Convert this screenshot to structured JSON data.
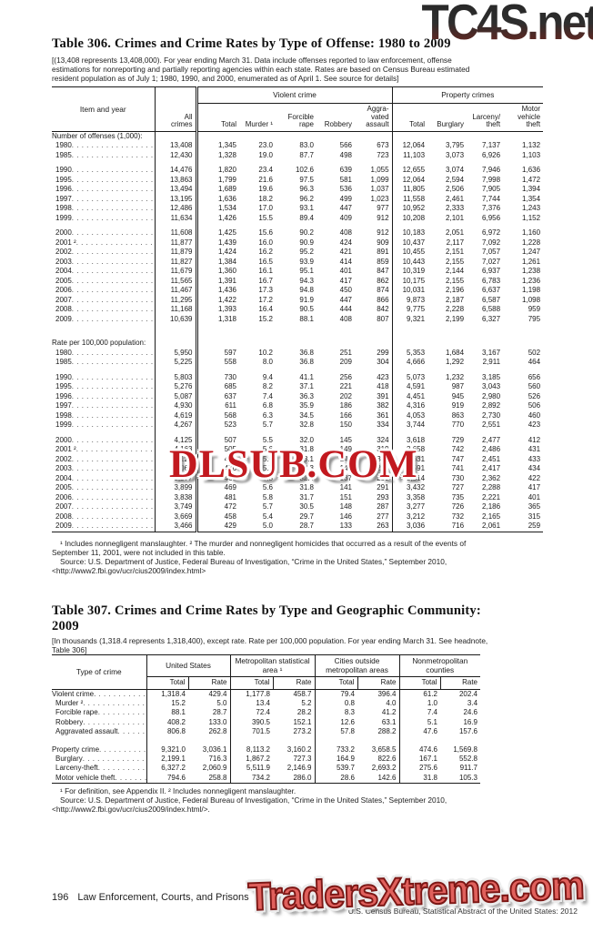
{
  "page": {
    "watermark_top": "TC4S.net",
    "watermark_mid": "DLSUB.COM",
    "watermark_bottom": "TradersXtreme.com",
    "footer": {
      "page_number": "196",
      "section_title": "Law Enforcement, Courts, and Prisons",
      "credit": "U.S. Census Bureau, Statistical Abstract of the United States: 2012"
    }
  },
  "table306": {
    "title": "Table 306. Crimes and Crime Rates by Type of Offense: 1980 to 2009",
    "headnote_lines": [
      "[(13,408 represents 13,408,000). For year ending March 31. Data include offenses reported to law enforcement, offense",
      "estimations for nonreporting and partially reporting agencies within each state. Rates are based on Census Bureau estimated",
      "resident population as of July 1; 1980, 1990, and 2000, enumerated as of April 1. See source for details]"
    ],
    "stub_head": "Item and year",
    "group_heads": {
      "violent": "Violent crime",
      "property": "Property crimes"
    },
    "col_heads": [
      "All\ncrimes",
      "Total",
      "Murder ¹",
      "Forcible\nrape",
      "Robbery",
      "Aggra-\nvated\nassault",
      "Total",
      "Burglary",
      "Larceny/\ntheft",
      "Motor\nvehicle\ntheft"
    ],
    "sections": [
      {
        "label": "Number of offenses (1,000):",
        "rows": [
          {
            "label": "1980",
            "values": [
              "13,408",
              "1,345",
              "23.0",
              "83.0",
              "566",
              "673",
              "12,064",
              "3,795",
              "7,137",
              "1,132"
            ]
          },
          {
            "label": "1985",
            "values": [
              "12,430",
              "1,328",
              "19.0",
              "87.7",
              "498",
              "723",
              "11,103",
              "3,073",
              "6,926",
              "1,103"
            ]
          },
          {
            "spacer": "sm"
          },
          {
            "label": "1990",
            "values": [
              "14,476",
              "1,820",
              "23.4",
              "102.6",
              "639",
              "1,055",
              "12,655",
              "3,074",
              "7,946",
              "1,636"
            ]
          },
          {
            "label": "1995",
            "values": [
              "13,863",
              "1,799",
              "21.6",
              "97.5",
              "581",
              "1,099",
              "12,064",
              "2,594",
              "7,998",
              "1,472"
            ]
          },
          {
            "label": "1996",
            "values": [
              "13,494",
              "1,689",
              "19.6",
              "96.3",
              "536",
              "1,037",
              "11,805",
              "2,506",
              "7,905",
              "1,394"
            ]
          },
          {
            "label": "1997",
            "values": [
              "13,195",
              "1,636",
              "18.2",
              "96.2",
              "499",
              "1,023",
              "11,558",
              "2,461",
              "7,744",
              "1,354"
            ]
          },
          {
            "label": "1998",
            "values": [
              "12,486",
              "1,534",
              "17.0",
              "93.1",
              "447",
              "977",
              "10,952",
              "2,333",
              "7,376",
              "1,243"
            ]
          },
          {
            "label": "1999",
            "values": [
              "11,634",
              "1,426",
              "15.5",
              "89.4",
              "409",
              "912",
              "10,208",
              "2,101",
              "6,956",
              "1,152"
            ]
          },
          {
            "spacer": "sm"
          },
          {
            "label": "2000",
            "values": [
              "11,608",
              "1,425",
              "15.6",
              "90.2",
              "408",
              "912",
              "10,183",
              "2,051",
              "6,972",
              "1,160"
            ]
          },
          {
            "label": "2001 ²",
            "values": [
              "11,877",
              "1,439",
              "16.0",
              "90.9",
              "424",
              "909",
              "10,437",
              "2,117",
              "7,092",
              "1,228"
            ]
          },
          {
            "label": "2002",
            "values": [
              "11,879",
              "1,424",
              "16.2",
              "95.2",
              "421",
              "891",
              "10,455",
              "2,151",
              "7,057",
              "1,247"
            ]
          },
          {
            "label": "2003",
            "values": [
              "11,827",
              "1,384",
              "16.5",
              "93.9",
              "414",
              "859",
              "10,443",
              "2,155",
              "7,027",
              "1,261"
            ]
          },
          {
            "label": "2004",
            "values": [
              "11,679",
              "1,360",
              "16.1",
              "95.1",
              "401",
              "847",
              "10,319",
              "2,144",
              "6,937",
              "1,238"
            ]
          },
          {
            "label": "2005",
            "values": [
              "11,565",
              "1,391",
              "16.7",
              "94.3",
              "417",
              "862",
              "10,175",
              "2,155",
              "6,783",
              "1,236"
            ]
          },
          {
            "label": "2006",
            "values": [
              "11,467",
              "1,436",
              "17.3",
              "94.8",
              "450",
              "874",
              "10,031",
              "2,196",
              "6,637",
              "1,198"
            ]
          },
          {
            "label": "2007",
            "values": [
              "11,295",
              "1,422",
              "17.2",
              "91.9",
              "447",
              "866",
              "9,873",
              "2,187",
              "6,587",
              "1,098"
            ]
          },
          {
            "label": "2008",
            "values": [
              "11,168",
              "1,393",
              "16.4",
              "90.5",
              "444",
              "842",
              "9,775",
              "2,228",
              "6,588",
              "959"
            ]
          },
          {
            "label": "2009",
            "values": [
              "10,639",
              "1,318",
              "15.2",
              "88.1",
              "408",
              "807",
              "9,321",
              "2,199",
              "6,327",
              "795"
            ]
          },
          {
            "spacer": "lg"
          }
        ]
      },
      {
        "label": "Rate per 100,000 population:",
        "rows": [
          {
            "label": "1980",
            "values": [
              "5,950",
              "597",
              "10.2",
              "36.8",
              "251",
              "299",
              "5,353",
              "1,684",
              "3,167",
              "502"
            ]
          },
          {
            "label": "1985",
            "values": [
              "5,225",
              "558",
              "8.0",
              "36.8",
              "209",
              "304",
              "4,666",
              "1,292",
              "2,911",
              "464"
            ]
          },
          {
            "spacer": "sm"
          },
          {
            "label": "1990",
            "values": [
              "5,803",
              "730",
              "9.4",
              "41.1",
              "256",
              "423",
              "5,073",
              "1,232",
              "3,185",
              "656"
            ]
          },
          {
            "label": "1995",
            "values": [
              "5,276",
              "685",
              "8.2",
              "37.1",
              "221",
              "418",
              "4,591",
              "987",
              "3,043",
              "560"
            ]
          },
          {
            "label": "1996",
            "values": [
              "5,087",
              "637",
              "7.4",
              "36.3",
              "202",
              "391",
              "4,451",
              "945",
              "2,980",
              "526"
            ]
          },
          {
            "label": "1997",
            "values": [
              "4,930",
              "611",
              "6.8",
              "35.9",
              "186",
              "382",
              "4,316",
              "919",
              "2,892",
              "506"
            ]
          },
          {
            "label": "1998",
            "values": [
              "4,619",
              "568",
              "6.3",
              "34.5",
              "166",
              "361",
              "4,053",
              "863",
              "2,730",
              "460"
            ]
          },
          {
            "label": "1999",
            "values": [
              "4,267",
              "523",
              "5.7",
              "32.8",
              "150",
              "334",
              "3,744",
              "770",
              "2,551",
              "423"
            ]
          },
          {
            "spacer": "sm"
          },
          {
            "label": "2000",
            "values": [
              "4,125",
              "507",
              "5.5",
              "32.0",
              "145",
              "324",
              "3,618",
              "729",
              "2,477",
              "412"
            ]
          },
          {
            "label": "2001 ²",
            "values": [
              "4,163",
              "505",
              "5.6",
              "31.8",
              "149",
              "319",
              "3,658",
              "742",
              "2,486",
              "431"
            ]
          },
          {
            "label": "2002",
            "values": [
              "4,125",
              "494",
              "5.6",
              "33.1",
              "146",
              "309",
              "3,631",
              "747",
              "2,451",
              "433"
            ]
          },
          {
            "label": "2003",
            "values": [
              "4,067",
              "476",
              "5.7",
              "32.3",
              "142",
              "295",
              "3,591",
              "741",
              "2,417",
              "434"
            ]
          },
          {
            "label": "2004",
            "values": [
              "3,977",
              "463",
              "5.5",
              "32.4",
              "137",
              "289",
              "3,514",
              "730",
              "2,362",
              "422"
            ]
          },
          {
            "label": "2005",
            "values": [
              "3,899",
              "469",
              "5.6",
              "31.8",
              "141",
              "291",
              "3,432",
              "727",
              "2,288",
              "417"
            ]
          },
          {
            "label": "2006",
            "values": [
              "3,838",
              "481",
              "5.8",
              "31.7",
              "151",
              "293",
              "3,358",
              "735",
              "2,221",
              "401"
            ]
          },
          {
            "label": "2007",
            "values": [
              "3,749",
              "472",
              "5.7",
              "30.5",
              "148",
              "287",
              "3,277",
              "726",
              "2,186",
              "365"
            ]
          },
          {
            "label": "2008",
            "values": [
              "3,669",
              "458",
              "5.4",
              "29.7",
              "146",
              "277",
              "3,212",
              "732",
              "2,165",
              "315"
            ]
          },
          {
            "label": "2009",
            "values": [
              "3,466",
              "429",
              "5.0",
              "28.7",
              "133",
              "263",
              "3,036",
              "716",
              "2,061",
              "259"
            ]
          }
        ]
      }
    ],
    "footnote_lines": [
      "¹ Includes nonnegligent manslaughter. ² The murder and nonnegligent homicides that occurred as a result of the events of",
      "September 11, 2001, were not included in this table."
    ],
    "source_lines": [
      "Source: U.S. Department of Justice, Federal Bureau of Investigation, “Crime in the United States,” September 2010,",
      "<http://www2.fbi.gov/ucr/cius2009/index.html>"
    ]
  },
  "table307": {
    "title_lines": [
      "Table 307. Crimes and Crime Rates by Type and Geographic Community:",
      "2009"
    ],
    "headnote_lines": [
      "[In thousands (1,318.4 represents 1,318,400), except rate. Rate per 100,000 population. For year ending March 31. See headnote,",
      "Table 306]"
    ],
    "stub_head": "Type of crime",
    "group_heads": [
      "United States",
      "Metropolitan statistical\narea ¹",
      "Cities outside\nmetropolitan areas",
      "Nonmetropolitan\ncounties"
    ],
    "sub_heads": [
      "Total",
      "Rate"
    ],
    "rows": [
      {
        "label": "Violent crime",
        "indent": false,
        "values": [
          "1,318.4",
          "429.4",
          "1,177.8",
          "458.7",
          "79.4",
          "396.4",
          "61.2",
          "202.4"
        ]
      },
      {
        "label": "Murder ²",
        "indent": true,
        "values": [
          "15.2",
          "5.0",
          "13.4",
          "5.2",
          "0.8",
          "4.0",
          "1.0",
          "3.4"
        ]
      },
      {
        "label": "Forcible rape",
        "indent": true,
        "values": [
          "88.1",
          "28.7",
          "72.4",
          "28.2",
          "8.3",
          "41.2",
          "7.4",
          "24.6"
        ]
      },
      {
        "label": "Robbery",
        "indent": true,
        "values": [
          "408.2",
          "133.0",
          "390.5",
          "152.1",
          "12.6",
          "63.1",
          "5.1",
          "16.9"
        ]
      },
      {
        "label": "Aggravated assault",
        "indent": true,
        "values": [
          "806.8",
          "262.8",
          "701.5",
          "273.2",
          "57.8",
          "288.2",
          "47.6",
          "157.6"
        ]
      },
      {
        "spacer": "sm7"
      },
      {
        "label": "Property crime",
        "indent": false,
        "values": [
          "9,321.0",
          "3,036.1",
          "8,113.2",
          "3,160.2",
          "733.2",
          "3,658.5",
          "474.6",
          "1,569.8"
        ]
      },
      {
        "label": "Burglary",
        "indent": true,
        "values": [
          "2,199.1",
          "716.3",
          "1,867.2",
          "727.3",
          "164.9",
          "822.6",
          "167.1",
          "552.8"
        ]
      },
      {
        "label": "Larceny-theft",
        "indent": true,
        "values": [
          "6,327.2",
          "2,060.9",
          "5,511.9",
          "2,146.9",
          "539.7",
          "2,693.2",
          "275.6",
          "911.7"
        ]
      },
      {
        "label": "Motor vehicle theft",
        "indent": true,
        "values": [
          "794.6",
          "258.8",
          "734.2",
          "286.0",
          "28.6",
          "142.6",
          "31.8",
          "105.3"
        ]
      }
    ],
    "footnote": "¹ For definition, see Appendix II. ² Includes nonnegligent manslaughter.",
    "source_lines": [
      "Source: U.S. Department of Justice, Federal Bureau of Investigation, “Crime in the United States,” September 2010,",
      "<http://www2.fbi.gov/ucr/cius2009/index.html/>."
    ]
  }
}
